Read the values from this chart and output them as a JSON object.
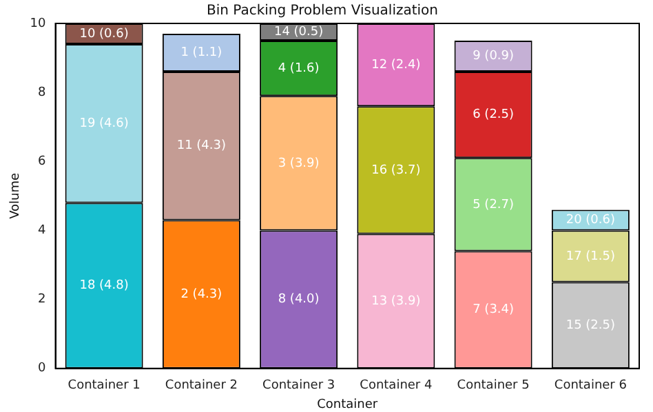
{
  "chart_data": {
    "type": "bar",
    "title": "Bin Packing Problem Visualization",
    "xlabel": "Container",
    "ylabel": "Volume",
    "categories": [
      "Container 1",
      "Container 2",
      "Container 3",
      "Container 4",
      "Container 5",
      "Container 6"
    ],
    "stacked": true,
    "ylim": [
      0,
      10
    ],
    "yticks": [
      0,
      2,
      4,
      6,
      8,
      10
    ],
    "grid": false,
    "legend": false,
    "series": [
      {
        "values": [
          4.8,
          4.3,
          4.0,
          3.9,
          3.4,
          2.5
        ],
        "colors": [
          "#17becf",
          "#ff7f0e",
          "#9467bd",
          "#f7b6d2",
          "#ff9896",
          "#c7c7c7"
        ],
        "value_labels": [
          "18 (4.8)",
          "2 (4.3)",
          "8 (4.0)",
          "13 (3.9)",
          "7 (3.4)",
          "15 (2.5)"
        ]
      },
      {
        "values": [
          4.6,
          4.3,
          3.9,
          3.7,
          2.7,
          1.5
        ],
        "colors": [
          "#9edae5",
          "#c49c94",
          "#ffbb78",
          "#bcbd22",
          "#98df8a",
          "#dbdb8d"
        ],
        "value_labels": [
          "19 (4.6)",
          "11 (4.3)",
          "3 (3.9)",
          "16 (3.7)",
          "5 (2.7)",
          "17 (1.5)"
        ]
      },
      {
        "values": [
          0.6,
          1.1,
          1.6,
          2.4,
          2.5,
          0.6
        ],
        "colors": [
          "#8c564b",
          "#aec7e8",
          "#2ca02c",
          "#e377c2",
          "#d62728",
          "#9edae5"
        ],
        "value_labels": [
          "10 (0.6)",
          "1 (1.1)",
          "4 (1.6)",
          "12 (2.4)",
          "6 (2.5)",
          "20 (0.6)"
        ]
      },
      {
        "values": [
          null,
          null,
          0.5,
          null,
          0.9,
          null
        ],
        "colors": [
          null,
          null,
          "#7f7f7f",
          null,
          "#c5b0d5",
          null
        ],
        "value_labels": [
          null,
          null,
          "14 (0.5)",
          null,
          "9 (0.9)",
          null
        ]
      }
    ]
  }
}
